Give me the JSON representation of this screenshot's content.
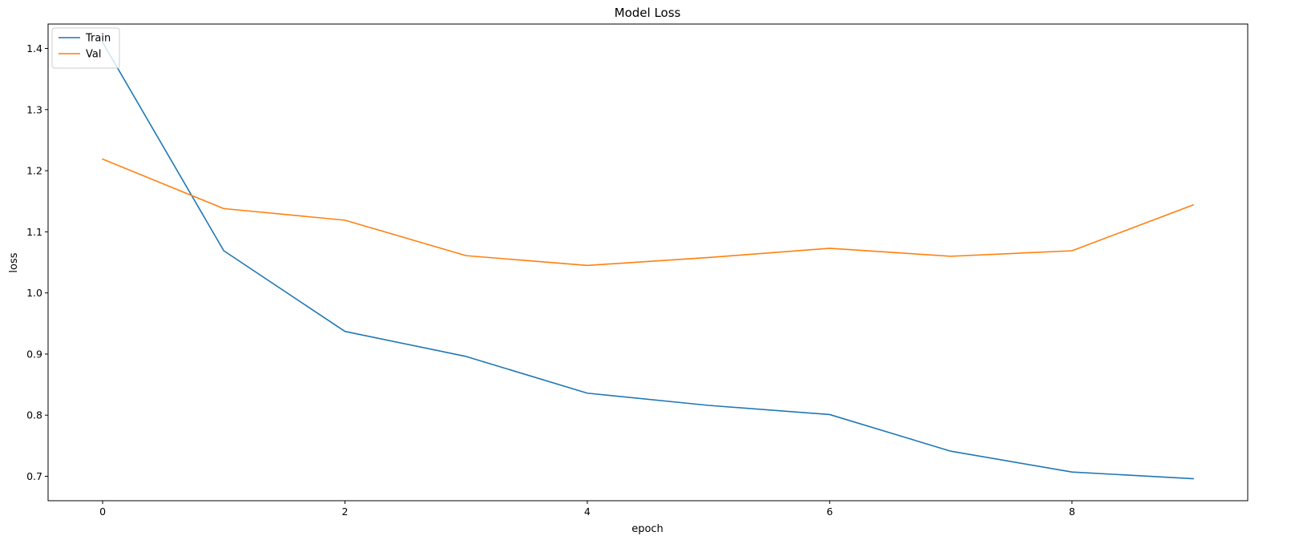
{
  "chart_data": {
    "type": "line",
    "title": "Model Loss",
    "xlabel": "epoch",
    "ylabel": "loss",
    "x": [
      0,
      1,
      2,
      3,
      4,
      5,
      6,
      7,
      8,
      9
    ],
    "xlim": [
      -0.45,
      9.45
    ],
    "ylim": [
      0.66,
      1.44
    ],
    "xticks": [
      0,
      2,
      4,
      6,
      8
    ],
    "yticks": [
      0.7,
      0.8,
      0.9,
      1.0,
      1.1,
      1.2,
      1.3,
      1.4
    ],
    "xtick_labels": [
      "0",
      "2",
      "4",
      "6",
      "8"
    ],
    "ytick_labels": [
      "0.7",
      "0.8",
      "0.9",
      "1.0",
      "1.1",
      "1.2",
      "1.3",
      "1.4"
    ],
    "series": [
      {
        "name": "Train",
        "color": "#1f77b4",
        "values": [
          1.41,
          1.069,
          0.937,
          0.896,
          0.836,
          0.816,
          0.801,
          0.741,
          0.707,
          0.696
        ]
      },
      {
        "name": "Val",
        "color": "#ff7f0e",
        "values": [
          1.219,
          1.138,
          1.119,
          1.061,
          1.045,
          1.058,
          1.073,
          1.06,
          1.069,
          1.144
        ]
      }
    ],
    "legend_position": "upper-left",
    "grid": false
  }
}
